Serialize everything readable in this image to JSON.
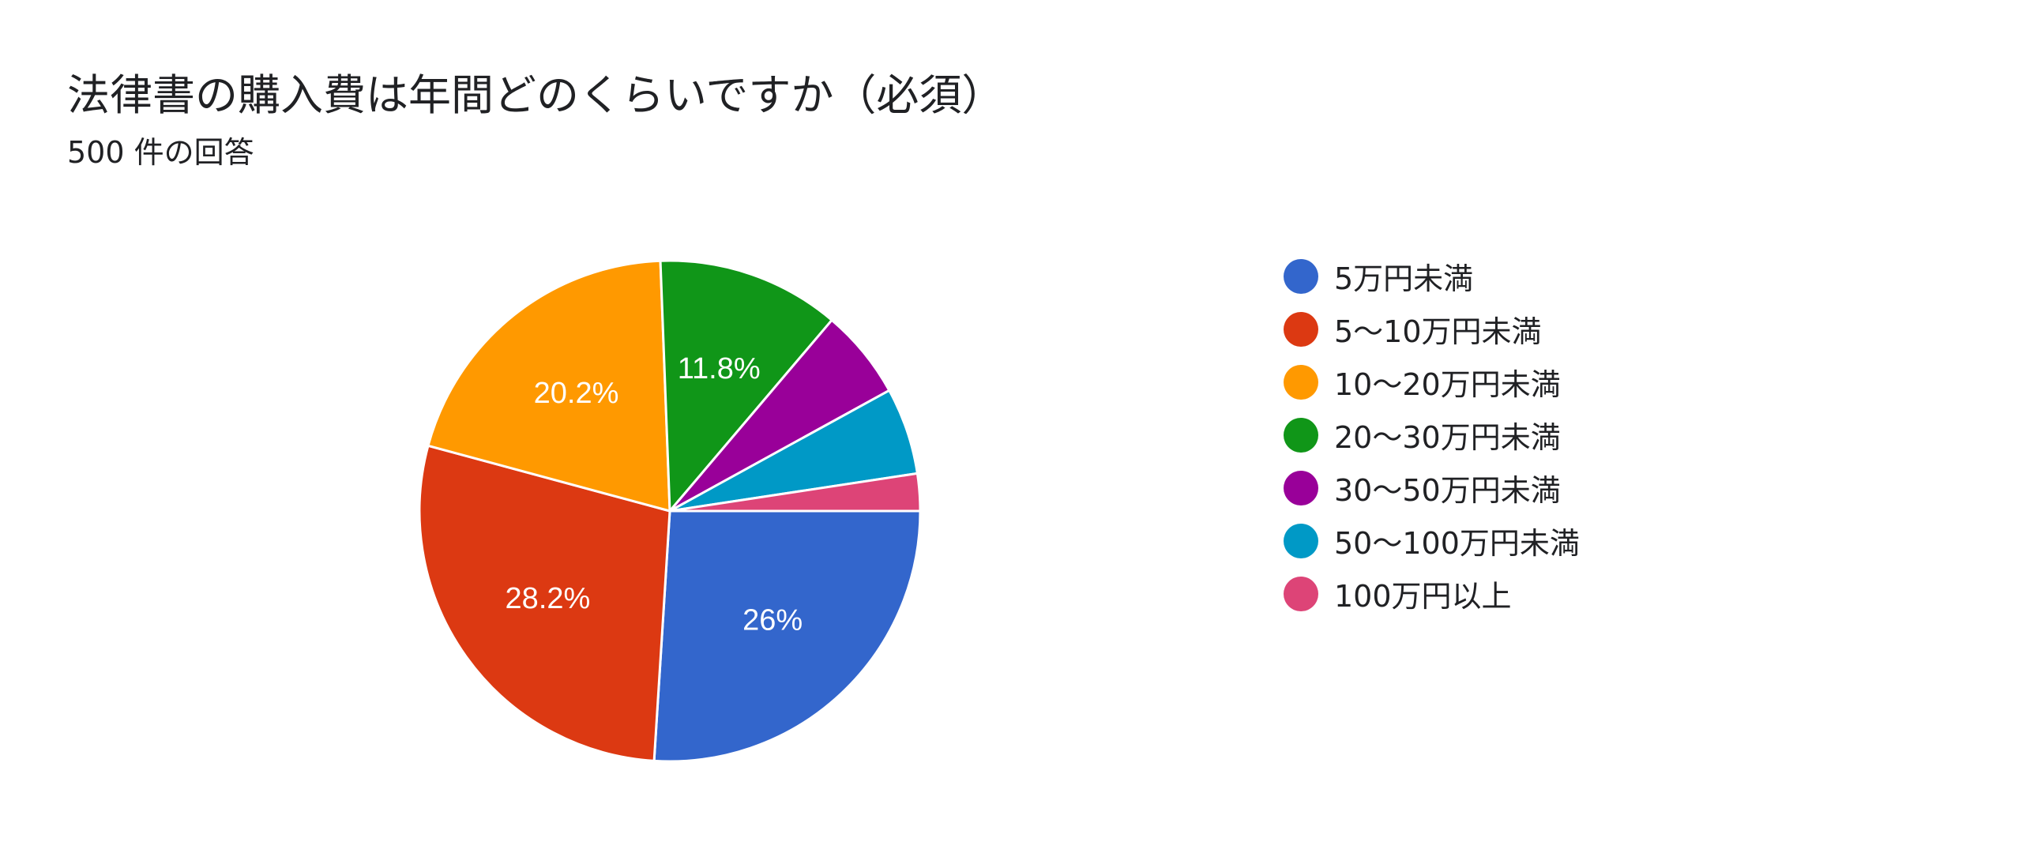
{
  "title": "法律書の購入費は年間どのくらいですか（必須）",
  "subtitle": "500 件の回答",
  "chart_data": {
    "type": "pie",
    "title": "法律書の購入費は年間どのくらいですか（必須）",
    "subtitle": "500 件の回答",
    "legend_position": "right",
    "slices": [
      {
        "label": "5万円未満",
        "value": 26.0,
        "display": "26%",
        "color": "#3366cc"
      },
      {
        "label": "5〜10万円未満",
        "value": 28.2,
        "display": "28.2%",
        "color": "#dc3912"
      },
      {
        "label": "10〜20万円未満",
        "value": 20.2,
        "display": "20.2%",
        "color": "#ff9900"
      },
      {
        "label": "20〜30万円未満",
        "value": 11.8,
        "display": "11.8%",
        "color": "#109618"
      },
      {
        "label": "30〜50万円未満",
        "value": 5.8,
        "display": "",
        "color": "#990099"
      },
      {
        "label": "50〜100万円未満",
        "value": 5.6,
        "display": "",
        "color": "#0099c6"
      },
      {
        "label": "100万円以上",
        "value": 2.4,
        "display": "",
        "color": "#dd4477"
      }
    ]
  }
}
